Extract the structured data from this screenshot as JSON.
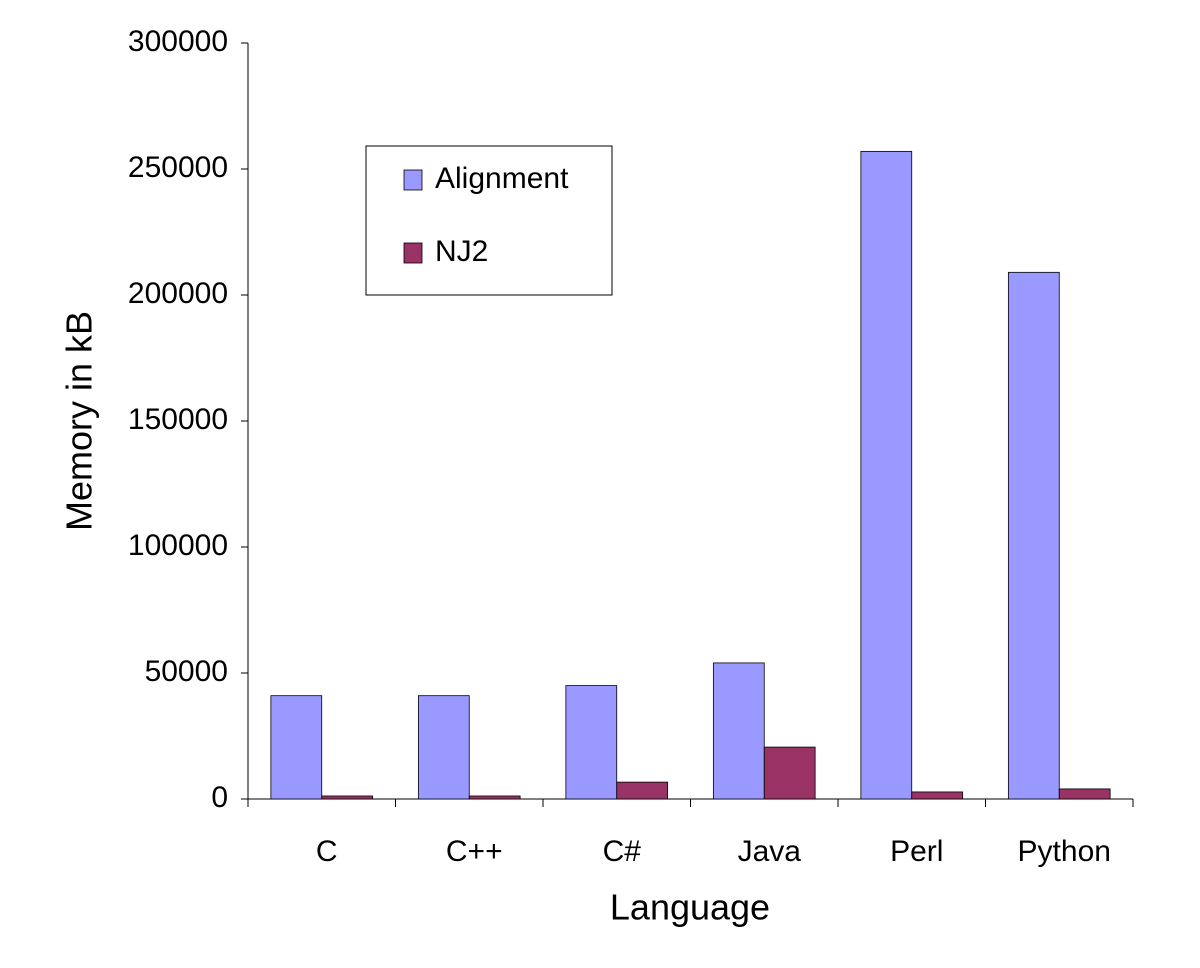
{
  "chart_data": {
    "type": "bar",
    "x_label": "Language",
    "y_label": "Memory in kB",
    "categories": [
      "C",
      "C++",
      "C#",
      "Java",
      "Perl",
      "Python"
    ],
    "series": [
      {
        "name": "Alignment",
        "color": "#9999ff",
        "values": [
          41000,
          41000,
          45000,
          54000,
          257000,
          209000
        ]
      },
      {
        "name": "NJ2",
        "color": "#993366",
        "values": [
          1200,
          1200,
          6700,
          20600,
          2800,
          4000
        ]
      }
    ],
    "ylim": [
      0,
      300000
    ],
    "yticks": [
      0,
      50000,
      100000,
      150000,
      200000,
      250000,
      300000
    ],
    "grid": false,
    "legend_position": "top-left"
  }
}
